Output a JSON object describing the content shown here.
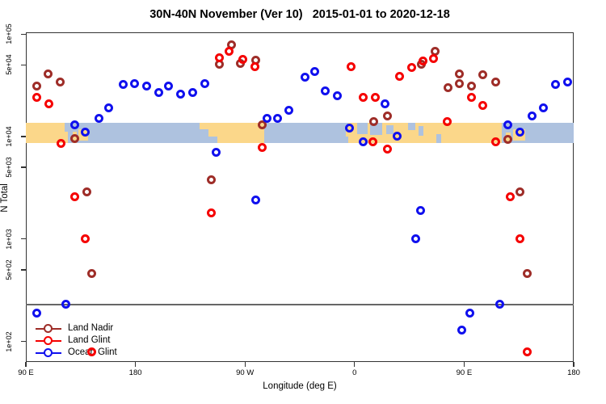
{
  "title": "30N-40N November (Ver 10)   2015-01-01 to 2020-12-18",
  "chart_data": {
    "type": "scatter",
    "xlabel": "Longitude (deg E)",
    "ylabel": "N Total",
    "x_axis": {
      "range_deg": [
        90,
        540
      ],
      "ticks_deg": [
        90,
        180,
        270,
        360,
        450,
        540
      ],
      "tick_labels": [
        "90 E",
        "180",
        "90 W",
        "0",
        "90 E",
        "180"
      ]
    },
    "y_axis": {
      "scale": "log",
      "range": [
        63,
        104000
      ],
      "ticks": [
        100000,
        50000,
        10000,
        5000,
        1000,
        500,
        100
      ],
      "tick_labels": [
        "1e+05",
        "5e+04",
        "1e+04",
        "5e+03",
        "1e+03",
        "5e+02",
        "1e+02"
      ]
    },
    "grid": false,
    "legend_position": "bottom-left",
    "threshold_line_value": 228,
    "map_band": {
      "value_top": 13600,
      "value_bottom": 8650,
      "ocean_color": "#AEC2DF",
      "land_color": "#FBD78A",
      "land_segments": [
        {
          "from": 90,
          "to": 122,
          "top": 0,
          "h": 1
        },
        {
          "from": 122,
          "to": 124.5,
          "top": 0.45,
          "h": 0.55
        },
        {
          "from": 128.5,
          "to": 131.5,
          "top": 0.45,
          "h": 0.55
        },
        {
          "from": 133,
          "to": 141,
          "top": 0.3,
          "h": 0.6
        },
        {
          "from": 233,
          "to": 286,
          "top": 0,
          "h": 0.34
        },
        {
          "from": 240,
          "to": 286,
          "top": 0.33,
          "h": 0.34
        },
        {
          "from": 247,
          "to": 286,
          "top": 0.66,
          "h": 0.34
        },
        {
          "from": 353,
          "to": 356,
          "top": 0.2,
          "h": 0.5
        },
        {
          "from": 355,
          "to": 481,
          "top": 0,
          "h": 1
        },
        {
          "from": 484.5,
          "to": 488.5,
          "top": 0.5,
          "h": 0.5
        },
        {
          "from": 490.5,
          "to": 500.5,
          "top": 0.3,
          "h": 0.6
        }
      ],
      "ocean_patches": [
        {
          "from": 362,
          "to": 371,
          "top": 0,
          "h": 0.55
        },
        {
          "from": 373,
          "to": 383,
          "top": 0,
          "h": 0.6
        },
        {
          "from": 386,
          "to": 392,
          "top": 0.1,
          "h": 0.45
        },
        {
          "from": 404,
          "to": 410,
          "top": 0,
          "h": 0.38
        },
        {
          "from": 412.5,
          "to": 416.5,
          "top": 0.15,
          "h": 0.5
        },
        {
          "from": 427,
          "to": 431,
          "top": 0.55,
          "h": 0.45
        }
      ]
    },
    "series": [
      {
        "name": "Land Nadir",
        "color": "#9E2D28",
        "points": [
          [
            99,
            31000
          ],
          [
            108,
            41000
          ],
          [
            118,
            34000
          ],
          [
            130,
            9500
          ],
          [
            140,
            2900
          ],
          [
            144,
            460
          ],
          [
            242,
            3800
          ],
          [
            249,
            51000
          ],
          [
            259,
            79000
          ],
          [
            266,
            52000
          ],
          [
            279,
            56000
          ],
          [
            284,
            13000
          ],
          [
            376,
            14000
          ],
          [
            387,
            16000
          ],
          [
            415,
            51000
          ],
          [
            426,
            68000
          ],
          [
            437,
            30000
          ],
          [
            446,
            41000
          ],
          [
            446,
            33000
          ],
          [
            456,
            31000
          ],
          [
            465,
            40000
          ],
          [
            476,
            34000
          ],
          [
            486,
            9300
          ],
          [
            496,
            2900
          ],
          [
            502,
            460
          ]
        ]
      },
      {
        "name": "Land Glint",
        "color": "#F50000",
        "points": [
          [
            99,
            24000
          ],
          [
            109,
            21000
          ],
          [
            119,
            8500
          ],
          [
            130,
            2600
          ],
          [
            139,
            1000
          ],
          [
            144,
            79
          ],
          [
            242,
            1800
          ],
          [
            249,
            59000
          ],
          [
            257,
            68000
          ],
          [
            268,
            57000
          ],
          [
            278,
            48000
          ],
          [
            284,
            7800
          ],
          [
            357,
            48000
          ],
          [
            367,
            24000
          ],
          [
            375,
            8800
          ],
          [
            377,
            24000
          ],
          [
            387,
            7600
          ],
          [
            397,
            39000
          ],
          [
            407,
            47000
          ],
          [
            416,
            55000
          ],
          [
            425,
            58000
          ],
          [
            436,
            14000
          ],
          [
            456,
            24000
          ],
          [
            465,
            20000
          ],
          [
            476,
            8800
          ],
          [
            488,
            2600
          ],
          [
            496,
            1000
          ],
          [
            502,
            79
          ]
        ]
      },
      {
        "name": "Ocean Glint",
        "color": "#1010EE",
        "points": [
          [
            99,
            190
          ],
          [
            123,
            230
          ],
          [
            130,
            13000
          ],
          [
            139,
            11000
          ],
          [
            150,
            15000
          ],
          [
            158,
            19000
          ],
          [
            170,
            32000
          ],
          [
            179,
            33000
          ],
          [
            189,
            31000
          ],
          [
            199,
            27000
          ],
          [
            207,
            31000
          ],
          [
            217,
            26000
          ],
          [
            227,
            27000
          ],
          [
            237,
            33000
          ],
          [
            246,
            7000
          ],
          [
            279,
            2400
          ],
          [
            288,
            15000
          ],
          [
            297,
            15000
          ],
          [
            306,
            18000
          ],
          [
            319,
            38000
          ],
          [
            327,
            43000
          ],
          [
            336,
            28000
          ],
          [
            346,
            25000
          ],
          [
            356,
            12000
          ],
          [
            367,
            8800
          ],
          [
            385,
            21000
          ],
          [
            395,
            10000
          ],
          [
            410,
            1000
          ],
          [
            414,
            1900
          ],
          [
            448,
            130
          ],
          [
            455,
            190
          ],
          [
            479,
            230
          ],
          [
            486,
            13000
          ],
          [
            496,
            11000
          ],
          [
            506,
            16000
          ],
          [
            515,
            19000
          ],
          [
            525,
            32000
          ],
          [
            535,
            34000
          ]
        ]
      }
    ]
  }
}
